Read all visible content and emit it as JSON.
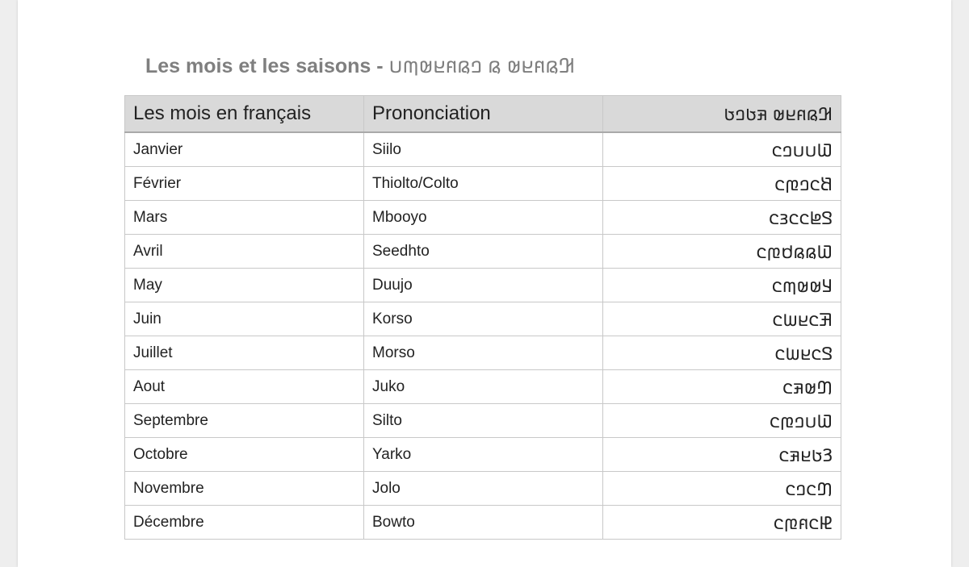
{
  "title": {
    "french": "Les mois et les saisons -",
    "adlam": "𞤂𞤫𞤱𞤪𞤵 𞤫 𞤤𞤫𞤱𞤪𞤵𞤶𞤭"
  },
  "table": {
    "headers": [
      "Les mois en français",
      "Prononciation",
      "𞤂𞤫𞤱𞤪𞤵 𞤳𞤢𞤤𞤢"
    ],
    "rows": [
      [
        "Janvier",
        "Siilo",
        "𞤅𞤭𞤭𞤤𞤮"
      ],
      [
        "Février",
        "Thiolto/Colto",
        "𞤕𞤮𞤤𞤼𞤮"
      ],
      [
        "Mars",
        "Mbooyo",
        "𞤃𞤦𞤮𞤮𞤴𞤮"
      ],
      [
        "Avril",
        "Seedhto",
        "𞤅𞤫𞤫𞤯𞤼𞤮"
      ],
      [
        "May",
        "Duujo",
        "𞤁𞤵𞤵𞤶𞤮"
      ],
      [
        "Juin",
        "Korso",
        "𞤑𞤮𞤪𞤧𞤮"
      ],
      [
        "Juillet",
        "Morso",
        "𞤃𞤮𞤪𞤧𞤮"
      ],
      [
        "Aout",
        "Juko",
        "𞤔𞤵𞤳𞤮"
      ],
      [
        "Septembre",
        "Silto",
        "𞤅𞤭𞤤𞤼𞤮"
      ],
      [
        "Octobre",
        "Yarko",
        "𞤒𞤢𞤪𞤳𞤮"
      ],
      [
        "Novembre",
        "Jolo",
        "𞤔𞤮𞤤𞤮"
      ],
      [
        "Décembre",
        "Bowto",
        "𞤄𞤮𞤱𞤼𞤮"
      ]
    ]
  }
}
